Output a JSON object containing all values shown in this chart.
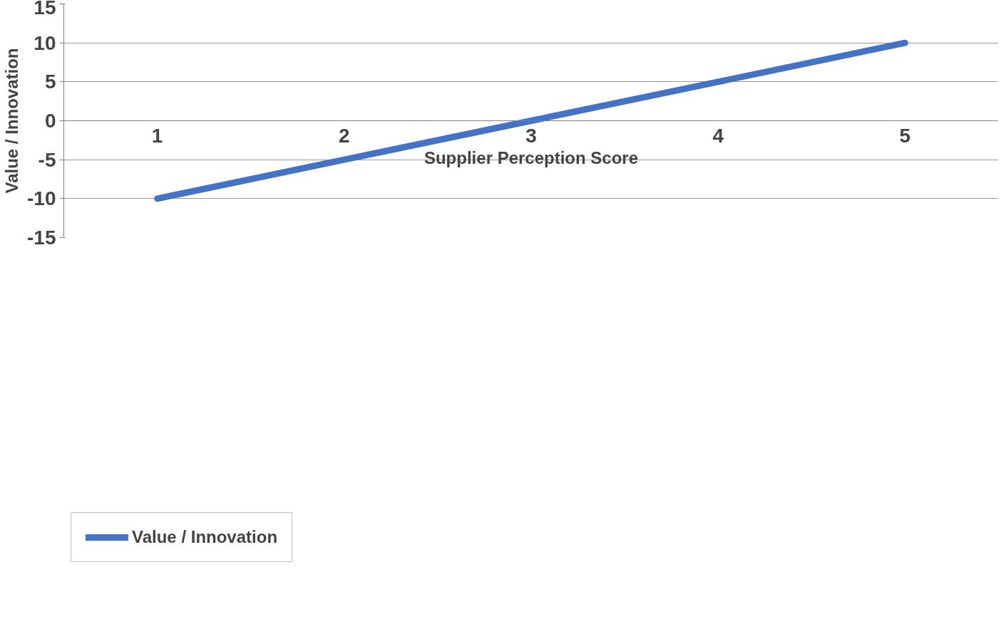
{
  "chart_data": {
    "type": "line",
    "xlabel": "Supplier Perception Score",
    "ylabel": "Value / Innovation",
    "categories": [
      "1",
      "2",
      "3",
      "4",
      "5"
    ],
    "series": [
      {
        "name": "Value / Innovation",
        "color": "#4472c4",
        "values": [
          -10,
          -5,
          0,
          5,
          10
        ]
      }
    ],
    "ylim": [
      -15,
      15
    ],
    "yticks": [
      -15,
      -10,
      -5,
      0,
      5,
      10,
      15
    ],
    "grid": "y",
    "legend": "bottom left",
    "marker": "none",
    "line_style": "solid"
  }
}
